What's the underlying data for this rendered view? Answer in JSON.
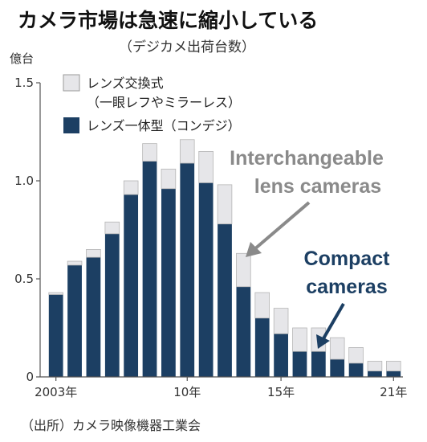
{
  "chart_data": {
    "type": "bar",
    "stacked": true,
    "title": "カメラ市場は急速に縮小している",
    "subtitle": "（デジカメ出荷台数）",
    "ylabel": "億台",
    "ylim": [
      0,
      1.5
    ],
    "yticks": [
      "0",
      "0.5",
      "1.0",
      "1.5"
    ],
    "x": [
      2003,
      2004,
      2005,
      2006,
      2007,
      2008,
      2009,
      2010,
      2011,
      2012,
      2013,
      2014,
      2015,
      2016,
      2017,
      2018,
      2019,
      2020,
      2021
    ],
    "xtick_labels": [
      {
        "year": 2003,
        "label": "2003年"
      },
      {
        "year": 2010,
        "label": "10年"
      },
      {
        "year": 2015,
        "label": "15年"
      },
      {
        "year": 2021,
        "label": "21年"
      }
    ],
    "series": [
      {
        "name": "レンズ一体型（コンデジ）",
        "color": "#1c3f63",
        "values": [
          0.42,
          0.57,
          0.61,
          0.73,
          0.93,
          1.1,
          0.96,
          1.09,
          0.99,
          0.78,
          0.46,
          0.3,
          0.22,
          0.13,
          0.13,
          0.09,
          0.07,
          0.03,
          0.03
        ]
      },
      {
        "name_lines": [
          "レンズ交換式",
          "（一眼レフやミラーレス）"
        ],
        "color": "#e6e6e9",
        "values": [
          0.01,
          0.02,
          0.04,
          0.06,
          0.07,
          0.09,
          0.1,
          0.12,
          0.16,
          0.2,
          0.17,
          0.13,
          0.13,
          0.12,
          0.12,
          0.11,
          0.08,
          0.05,
          0.05
        ]
      }
    ],
    "grid": false,
    "legend_position": "top-left"
  },
  "annotations": {
    "interchangeable_line1": "Interchangeable",
    "interchangeable_line2": "lens cameras",
    "interchangeable_color": "#8a8a8a",
    "compact_line1": "Compact",
    "compact_line2": "cameras",
    "compact_color": "#1c3f63"
  },
  "source": "（出所）カメラ映像機器工業会"
}
